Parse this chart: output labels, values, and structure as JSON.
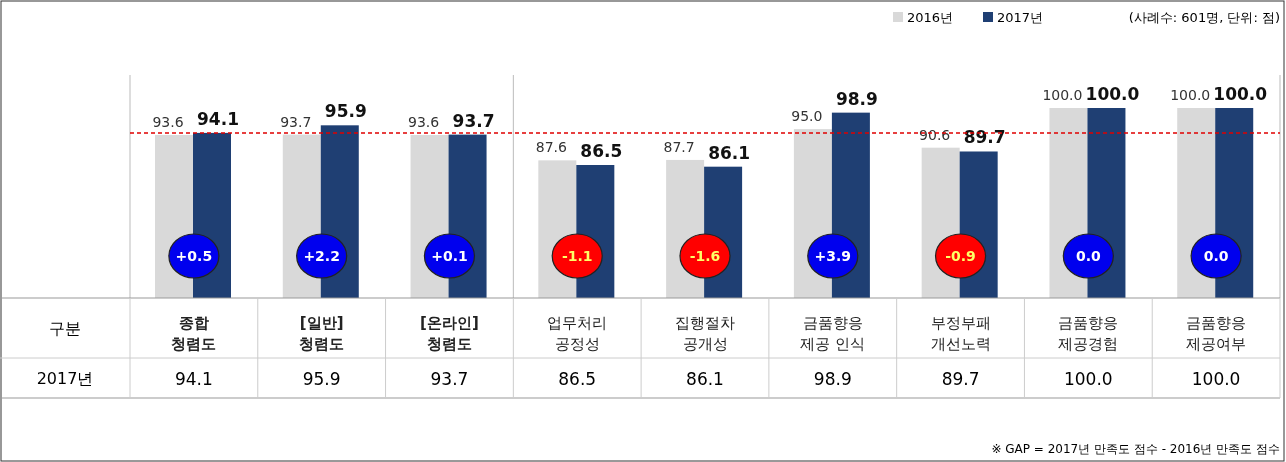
{
  "chart_data": {
    "type": "bar",
    "categories": [
      "종합\n청렴도",
      "[일반]\n청렴도",
      "[온라인]\n청렴도",
      "업무처리\n공정성",
      "집행절차\n공개성",
      "금품향응\n제공 인식",
      "부정부패\n개선노력",
      "금품향응\n제공경험",
      "금품향응\n제공여부"
    ],
    "series": [
      {
        "name": "2016년",
        "color": "#d9d9d9",
        "values": [
          93.6,
          93.7,
          93.6,
          87.6,
          87.7,
          95.0,
          90.6,
          100.0,
          100.0
        ],
        "value_labels": [
          "93.6",
          "93.7",
          "93.6",
          "87.6",
          "87.7",
          "95.0",
          "90.6",
          "100.0",
          "100.0"
        ]
      },
      {
        "name": "2017년",
        "color": "#1f3f73",
        "values": [
          94.1,
          95.9,
          93.7,
          86.5,
          86.1,
          98.9,
          89.7,
          100.0,
          100.0
        ],
        "value_labels": [
          "94.1",
          "95.9",
          "93.7",
          "86.5",
          "86.1",
          "98.9",
          "89.7",
          "100.0",
          "100.0"
        ]
      }
    ],
    "xlabel": "구분",
    "ylim": [
      55,
      100
    ],
    "legend": "top right",
    "ref_lines": [
      {
        "axis": "y",
        "value": 94.1,
        "color": "#e00000",
        "line_style": "dashed"
      }
    ],
    "annotations": [
      "(사례수: 601명, 단위: 점)",
      "※ GAP = 2017년 만족도 점수 - 2016년 만족도 점수",
      {
        "text": "+0.5",
        "x": "종합\n청렴도"
      },
      {
        "text": "+2.2",
        "x": "[일반]\n청렴도"
      },
      {
        "text": "+0.1",
        "x": "[온라인]\n청렴도"
      },
      {
        "text": "-1.1",
        "x": "업무처리\n공정성"
      },
      {
        "text": "-1.6",
        "x": "집행절차\n공개성"
      },
      {
        "text": "+3.9",
        "x": "금품향응\n제공 인식"
      },
      {
        "text": "-0.9",
        "x": "부정부패\n개선노력"
      },
      {
        "text": "0.0",
        "x": "금품향응\n제공경험"
      },
      {
        "text": "0.0",
        "x": "금품향응\n제공여부"
      }
    ]
  }
}
